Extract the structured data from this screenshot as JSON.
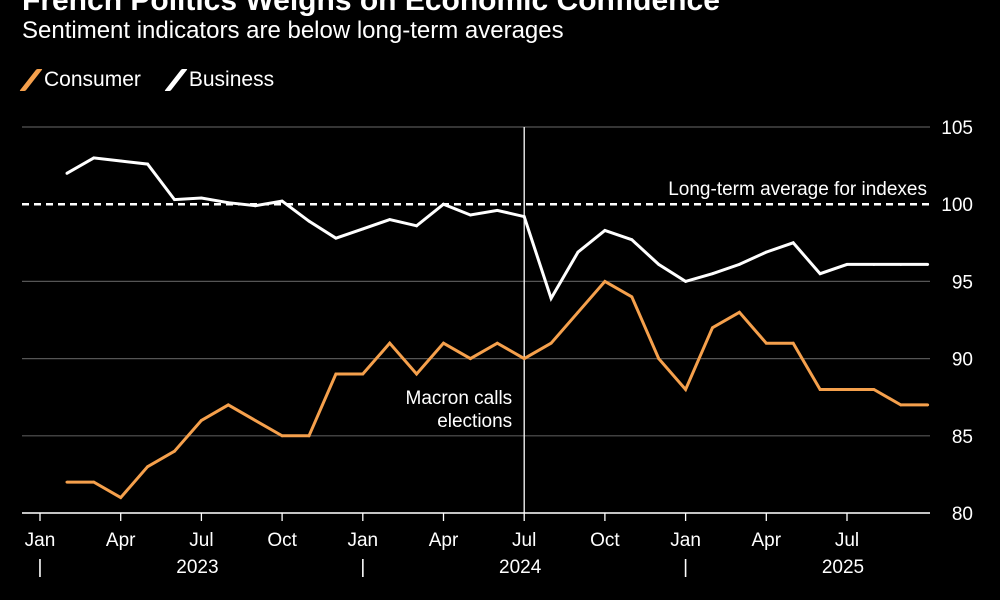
{
  "chart_data": {
    "type": "line",
    "title": "French Politics Weighs on Economic Confidence",
    "subtitle": "Sentiment indicators are below long-term averages",
    "colors": {
      "consumer": "#f5a04c",
      "business": "#ffffff",
      "grid": "#555555",
      "background": "#000000"
    },
    "x": [
      "2023-02",
      "2023-03",
      "2023-04",
      "2023-05",
      "2023-06",
      "2023-07",
      "2023-08",
      "2023-09",
      "2023-10",
      "2023-11",
      "2023-12",
      "2024-01",
      "2024-02",
      "2024-03",
      "2024-04",
      "2024-05",
      "2024-06",
      "2024-07",
      "2024-08",
      "2024-09",
      "2024-10",
      "2024-11",
      "2024-12",
      "2025-01",
      "2025-02",
      "2025-03",
      "2025-04",
      "2025-05",
      "2025-06",
      "2025-07",
      "2025-08",
      "2025-09",
      "2025-10"
    ],
    "series": [
      {
        "name": "Consumer",
        "values": [
          82,
          82,
          81,
          83,
          84,
          86,
          87,
          86,
          85,
          85,
          89,
          89,
          91,
          89,
          91,
          90,
          91,
          90,
          91,
          93,
          95,
          94,
          90,
          88,
          92,
          93,
          91,
          91,
          88,
          88,
          88,
          87,
          87
        ]
      },
      {
        "name": "Business",
        "values": [
          102,
          103,
          102.8,
          102.6,
          100.3,
          100.4,
          100.1,
          99.9,
          100.2,
          98.9,
          97.8,
          98.4,
          99.0,
          98.6,
          100.0,
          99.3,
          99.6,
          99.2,
          93.9,
          96.9,
          98.3,
          97.7,
          96.1,
          95.0,
          95.5,
          96.1,
          96.9,
          97.5,
          95.5,
          96.1,
          96.1,
          96.1,
          96.1
        ]
      }
    ],
    "reference_line": {
      "value": 100,
      "label": "Long-term average for indexes"
    },
    "event": {
      "date": "2024-07",
      "label_line1": "Macron calls",
      "label_line2": "elections"
    },
    "ylim": [
      80,
      105
    ],
    "yticks": [
      80,
      85,
      90,
      95,
      100,
      105
    ],
    "xticks": [
      {
        "date": "2023-01",
        "label": "Jan"
      },
      {
        "date": "2023-04",
        "label": "Apr"
      },
      {
        "date": "2023-07",
        "label": "Jul"
      },
      {
        "date": "2023-10",
        "label": "Oct"
      },
      {
        "date": "2024-01",
        "label": "Jan"
      },
      {
        "date": "2024-04",
        "label": "Apr"
      },
      {
        "date": "2024-07",
        "label": "Jul"
      },
      {
        "date": "2024-10",
        "label": "Oct"
      },
      {
        "date": "2025-01",
        "label": "Jan"
      },
      {
        "date": "2025-04",
        "label": "Apr"
      },
      {
        "date": "2025-07",
        "label": "Jul"
      }
    ],
    "years": [
      {
        "start": "2023-01",
        "label": "2023"
      },
      {
        "start": "2024-01",
        "label": "2024"
      },
      {
        "start": "2025-01",
        "label": "2025"
      }
    ],
    "year_separator": "|",
    "legend": [
      "Consumer",
      "Business"
    ],
    "legend_position": "top-left"
  }
}
